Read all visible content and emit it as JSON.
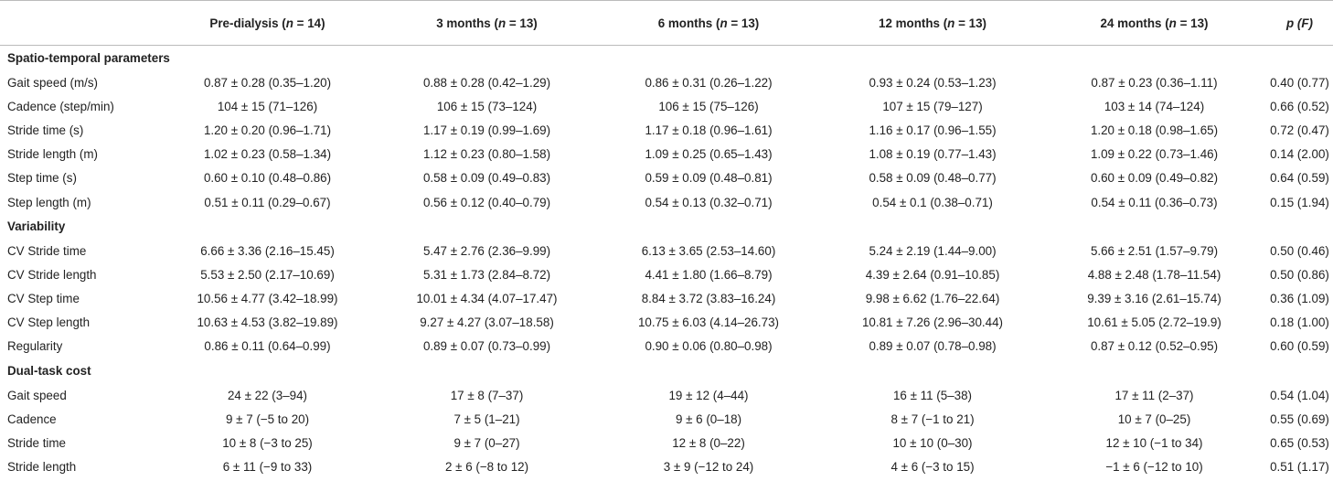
{
  "header": {
    "col0": "",
    "col1": "Pre-dialysis (",
    "col1_n": "n",
    "col1_rest": " = 14)",
    "col2": "3 months (",
    "col2_n": "n",
    "col2_rest": " = 13)",
    "col3": "6 months (",
    "col3_n": "n",
    "col3_rest": " = 13)",
    "col4": "12 months (",
    "col4_n": "n",
    "col4_rest": " = 13)",
    "col5": "24 months (",
    "col5_n": "n",
    "col5_rest": " = 13)",
    "col6_p": "p",
    "col6_f": " (F)"
  },
  "sections": [
    {
      "title": "Spatio-temporal parameters",
      "rows": [
        {
          "label": "Gait speed (m/s)",
          "c": [
            "0.87 ± 0.28 (0.35–1.20)",
            "0.88 ± 0.28 (0.42–1.29)",
            "0.86 ± 0.31 (0.26–1.22)",
            "0.93 ± 0.24 (0.53–1.23)",
            "0.87 ± 0.23 (0.36–1.11)",
            "0.40 (0.77)"
          ]
        },
        {
          "label": "Cadence (step/min)",
          "c": [
            "104 ± 15 (71–126)",
            "106 ± 15 (73–124)",
            "106 ± 15 (75–126)",
            "107 ± 15 (79–127)",
            "103 ± 14 (74–124)",
            "0.66 (0.52)"
          ]
        },
        {
          "label": "Stride time (s)",
          "c": [
            "1.20 ± 0.20 (0.96–1.71)",
            "1.17 ± 0.19 (0.99–1.69)",
            "1.17 ± 0.18 (0.96–1.61)",
            "1.16 ± 0.17 (0.96–1.55)",
            "1.20 ± 0.18 (0.98–1.65)",
            "0.72 (0.47)"
          ]
        },
        {
          "label": "Stride length (m)",
          "c": [
            "1.02 ± 0.23 (0.58–1.34)",
            "1.12 ± 0.23 (0.80–1.58)",
            "1.09 ± 0.25 (0.65–1.43)",
            "1.08 ± 0.19 (0.77–1.43)",
            "1.09 ± 0.22 (0.73–1.46)",
            "0.14 (2.00)"
          ]
        },
        {
          "label": "Step time (s)",
          "c": [
            "0.60 ± 0.10 (0.48–0.86)",
            "0.58 ± 0.09 (0.49–0.83)",
            "0.59 ± 0.09 (0.48–0.81)",
            "0.58 ± 0.09 (0.48–0.77)",
            "0.60 ± 0.09 (0.49–0.82)",
            "0.64 (0.59)"
          ]
        },
        {
          "label": "Step length (m)",
          "c": [
            "0.51 ± 0.11 (0.29–0.67)",
            "0.56 ± 0.12 (0.40–0.79)",
            "0.54 ± 0.13 (0.32–0.71)",
            "0.54 ± 0.1 (0.38–0.71)",
            "0.54 ± 0.11 (0.36–0.73)",
            "0.15 (1.94)"
          ]
        }
      ]
    },
    {
      "title": "Variability",
      "rows": [
        {
          "label": "CV Stride time",
          "c": [
            "6.66 ± 3.36 (2.16–15.45)",
            "5.47 ± 2.76 (2.36–9.99)",
            "6.13 ± 3.65 (2.53–14.60)",
            "5.24 ± 2.19 (1.44–9.00)",
            "5.66 ± 2.51 (1.57–9.79)",
            "0.50 (0.46)"
          ]
        },
        {
          "label": "CV Stride length",
          "c": [
            "5.53 ± 2.50 (2.17–10.69)",
            "5.31 ± 1.73 (2.84–8.72)",
            "4.41 ± 1.80 (1.66–8.79)",
            "4.39 ± 2.64 (0.91–10.85)",
            "4.88 ± 2.48 (1.78–11.54)",
            "0.50 (0.86)"
          ]
        },
        {
          "label": "CV Step time",
          "c": [
            "10.56 ± 4.77 (3.42–18.99)",
            "10.01 ± 4.34 (4.07–17.47)",
            "8.84 ± 3.72 (3.83–16.24)",
            "9.98 ± 6.62 (1.76–22.64)",
            "9.39 ± 3.16 (2.61–15.74)",
            "0.36 (1.09)"
          ]
        },
        {
          "label": "CV Step length",
          "c": [
            "10.63 ± 4.53 (3.82–19.89)",
            "9.27 ± 4.27 (3.07–18.58)",
            "10.75 ± 6.03 (4.14–26.73)",
            "10.81 ± 7.26 (2.96–30.44)",
            "10.61 ± 5.05 (2.72–19.9)",
            "0.18 (1.00)"
          ]
        },
        {
          "label": "Regularity",
          "c": [
            "0.86 ± 0.11 (0.64–0.99)",
            "0.89 ± 0.07 (0.73–0.99)",
            "0.90 ± 0.06 (0.80–0.98)",
            "0.89 ± 0.07 (0.78–0.98)",
            "0.87 ± 0.12 (0.52–0.95)",
            "0.60 (0.59)"
          ]
        }
      ]
    },
    {
      "title": "Dual-task cost",
      "rows": [
        {
          "label": "Gait speed",
          "c": [
            "24 ± 22 (3–94)",
            "17 ± 8 (7–37)",
            "19 ± 12 (4–44)",
            "16 ± 11 (5–38)",
            "17 ± 11 (2–37)",
            "0.54 (1.04)"
          ]
        },
        {
          "label": "Cadence",
          "c": [
            "9 ± 7 (−5 to 20)",
            "7 ± 5 (1–21)",
            "9 ± 6 (0–18)",
            "8 ± 7 (−1 to 21)",
            "10 ± 7 (0–25)",
            "0.55 (0.69)"
          ]
        },
        {
          "label": "Stride time",
          "c": [
            "10 ± 8 (−3 to 25)",
            "9 ± 7 (0–27)",
            "12 ± 8 (0–22)",
            "10 ± 10 (0–30)",
            "12 ± 10 (−1 to 34)",
            "0.65 (0.53)"
          ]
        },
        {
          "label": "Stride length",
          "c": [
            "6 ± 11 (−9 to 33)",
            "2 ± 6 (−8 to 12)",
            "3 ± 9 (−12 to 24)",
            "4 ± 6 (−3 to 15)",
            "−1 ± 6 (−12 to 10)",
            "0.51 (1.17)"
          ]
        }
      ]
    }
  ]
}
